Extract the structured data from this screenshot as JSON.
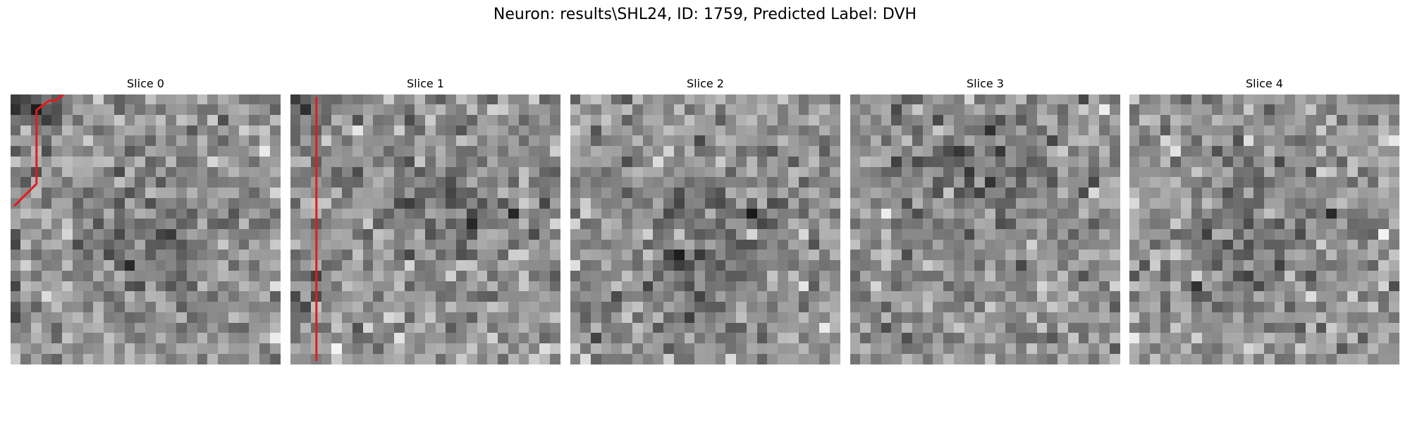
{
  "figure": {
    "title": "Neuron: results\\SHL24, ID: 1759, Predicted Label: DVH"
  },
  "trace_color": "#e41a1c",
  "slices": [
    {
      "title": "Slice 0",
      "grid_size": 26,
      "dark_center": [
        13.5,
        14.5
      ],
      "dark_corner": "top-left",
      "trace": [
        [
          0.4,
          10.7
        ],
        [
          2.5,
          8.6
        ],
        [
          2.5,
          1.5
        ],
        [
          3.7,
          0.6
        ],
        [
          4.3,
          0.6
        ],
        [
          5.0,
          0.1
        ]
      ]
    },
    {
      "title": "Slice 1",
      "grid_size": 26,
      "dark_center": [
        15,
        9.5
      ],
      "dark_corner": "top-left",
      "trace": [
        [
          2.5,
          0.3
        ],
        [
          2.5,
          25.6
        ]
      ]
    },
    {
      "title": "Slice 2",
      "grid_size": 26,
      "dark_center": [
        14,
        15
      ],
      "dark_corner": "",
      "trace": []
    },
    {
      "title": "Slice 3",
      "grid_size": 26,
      "dark_center": [
        13,
        8.5
      ],
      "dark_corner": "",
      "trace": []
    },
    {
      "title": "Slice 4",
      "grid_size": 26,
      "dark_center": [
        12.5,
        13
      ],
      "dark_corner": "",
      "trace": []
    }
  ]
}
